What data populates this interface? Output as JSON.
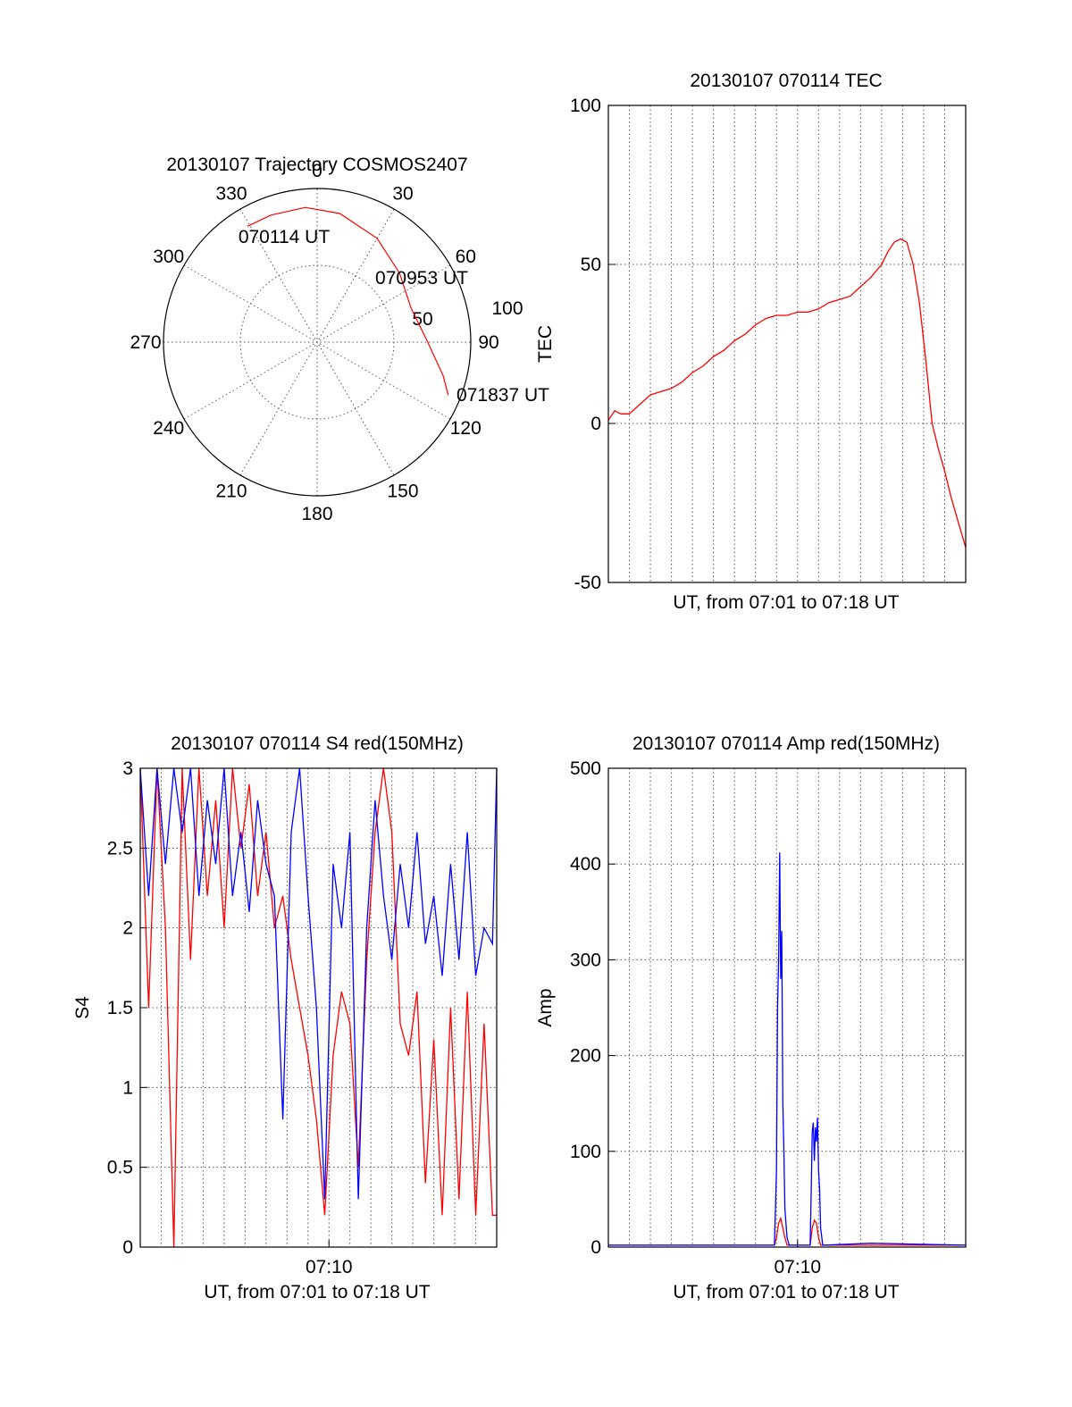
{
  "colors": {
    "red": "#ff0000",
    "blue": "#0000ff",
    "axis": "#000000"
  },
  "chart_data": [
    {
      "type": "polar",
      "title": "20130107 Trajectory COSMOS2407",
      "angle_labels": [
        "0",
        "30",
        "60",
        "90",
        "120",
        "150",
        "180",
        "210",
        "240",
        "270",
        "300",
        "330"
      ],
      "radial_labels": [
        "50",
        "100"
      ],
      "track": {
        "start_label": "070114 UT",
        "mid_label": "070953 UT",
        "end_label": "071837 UT",
        "points": [
          [
            -31,
            88
          ],
          [
            -20,
            88
          ],
          [
            -5,
            88
          ],
          [
            10,
            85
          ],
          [
            30,
            78
          ],
          [
            50,
            70
          ],
          [
            70,
            65
          ],
          [
            90,
            72
          ],
          [
            105,
            85
          ],
          [
            112,
            92
          ]
        ]
      }
    },
    {
      "type": "line",
      "title": "20130107 070114 TEC",
      "xlabel": "UT, from 07:01 to 07:18 UT",
      "ylabel": "TEC",
      "xlim": [
        0,
        17
      ],
      "ylim": [
        -50,
        100
      ],
      "yticks": [
        "-50",
        "0",
        "50",
        "100"
      ],
      "series": [
        {
          "color": "#ff0000",
          "x": [
            0,
            0.3,
            0.6,
            1,
            1.5,
            2,
            2.5,
            3,
            3.5,
            4,
            4.5,
            5,
            5.5,
            6,
            6.5,
            7,
            7.5,
            8,
            8.5,
            9,
            9.5,
            10,
            10.5,
            11,
            11.5,
            12,
            12.5,
            13,
            13.3,
            13.6,
            13.9,
            14.2,
            14.5,
            14.8,
            15.1,
            15.4,
            15.7,
            16,
            16.3,
            16.6,
            17
          ],
          "y": [
            1,
            4,
            3,
            3,
            6,
            9,
            10,
            11,
            13,
            16,
            18,
            21,
            23,
            26,
            28,
            31,
            33,
            34,
            34,
            35,
            35,
            36,
            38,
            39,
            40,
            43,
            46,
            50,
            54,
            57,
            58,
            57,
            50,
            38,
            20,
            0,
            -8,
            -15,
            -23,
            -30,
            -39
          ]
        }
      ]
    },
    {
      "type": "line",
      "title": "20130107 070114 S4 red(150MHz)",
      "xlabel": "UT, from 07:01 to 07:18 UT",
      "ylabel": "S4",
      "xlim": [
        0,
        17
      ],
      "ylim": [
        0,
        3
      ],
      "yticks": [
        "0",
        "0.5",
        "1",
        "1.5",
        "2",
        "2.5",
        "3"
      ],
      "xticks": [
        "07:10"
      ],
      "series": [
        {
          "color": "#ff0000",
          "x": [
            0,
            0.4,
            0.8,
            1.2,
            1.6,
            2,
            2.4,
            2.8,
            3.2,
            3.6,
            4,
            4.4,
            4.8,
            5.2,
            5.6,
            6,
            6.4,
            6.8,
            7.2,
            7.6,
            8,
            8.4,
            8.8,
            9.2,
            9.6,
            10,
            10.4,
            10.8,
            11.2,
            11.6,
            12,
            12.4,
            12.8,
            13.2,
            13.6,
            14,
            14.4,
            14.8,
            15.2,
            15.6,
            16,
            16.4,
            16.8,
            17
          ],
          "y": [
            3,
            1.5,
            3,
            2,
            0,
            3,
            1.8,
            3,
            2.2,
            2.8,
            2,
            3,
            2.5,
            2.9,
            2.2,
            2.6,
            2,
            2.2,
            1.8,
            1.5,
            1.2,
            0.8,
            0.2,
            1.2,
            1.6,
            1.4,
            0.5,
            1.8,
            2.6,
            3,
            2.6,
            1.4,
            1.2,
            1.6,
            0.4,
            1.3,
            0.2,
            1.5,
            0.3,
            1.6,
            0.2,
            1.4,
            0.2,
            0.2
          ]
        },
        {
          "color": "#0000ff",
          "x": [
            0,
            0.4,
            0.8,
            1.2,
            1.6,
            2,
            2.4,
            2.8,
            3.2,
            3.6,
            4,
            4.4,
            4.8,
            5.2,
            5.6,
            6,
            6.4,
            6.8,
            7.2,
            7.6,
            8,
            8.4,
            8.8,
            9.2,
            9.6,
            10,
            10.4,
            10.8,
            11.2,
            11.6,
            12,
            12.4,
            12.8,
            13.2,
            13.6,
            14,
            14.4,
            14.8,
            15.2,
            15.6,
            16,
            16.4,
            16.8,
            17
          ],
          "y": [
            3,
            2.2,
            3,
            2.4,
            3,
            2.6,
            3,
            2.2,
            2.8,
            2.4,
            3,
            2.2,
            2.6,
            2.1,
            2.8,
            2.4,
            2.2,
            0.8,
            2.6,
            3,
            2.2,
            1.5,
            0.3,
            2.4,
            2,
            2.6,
            0.3,
            2,
            2.8,
            2.2,
            1.8,
            2.4,
            2,
            2.6,
            1.9,
            2.2,
            1.7,
            2.4,
            1.8,
            2.6,
            1.7,
            2,
            1.9,
            3
          ]
        }
      ]
    },
    {
      "type": "line",
      "title": "20130107 070114 Amp red(150MHz)",
      "xlabel": "UT, from 07:01 to 07:18 UT",
      "ylabel": "Amp",
      "xlim": [
        0,
        17
      ],
      "ylim": [
        0,
        500
      ],
      "yticks": [
        "0",
        "100",
        "200",
        "300",
        "400",
        "500"
      ],
      "xticks": [
        "07:10"
      ],
      "series": [
        {
          "color": "#ff0000",
          "x": [
            0,
            7.9,
            8.0,
            8.1,
            8.2,
            8.3,
            8.4,
            8.5,
            8.6,
            9.6,
            9.7,
            9.8,
            9.9,
            10.0,
            10.1,
            17
          ],
          "y": [
            2,
            2,
            10,
            25,
            30,
            20,
            10,
            2,
            2,
            2,
            20,
            28,
            25,
            10,
            2,
            2
          ]
        },
        {
          "color": "#0000ff",
          "x": [
            0,
            7.9,
            8.0,
            8.05,
            8.1,
            8.15,
            8.2,
            8.25,
            8.3,
            8.35,
            8.4,
            8.5,
            8.6,
            9.6,
            9.65,
            9.7,
            9.75,
            9.8,
            9.85,
            9.9,
            9.95,
            10.0,
            10.05,
            10.1,
            10.2,
            12.5,
            17
          ],
          "y": [
            2,
            2,
            80,
            250,
            300,
            412,
            280,
            330,
            150,
            100,
            40,
            10,
            2,
            2,
            60,
            120,
            130,
            90,
            125,
            110,
            135,
            80,
            60,
            20,
            2,
            4,
            2
          ]
        }
      ]
    }
  ]
}
